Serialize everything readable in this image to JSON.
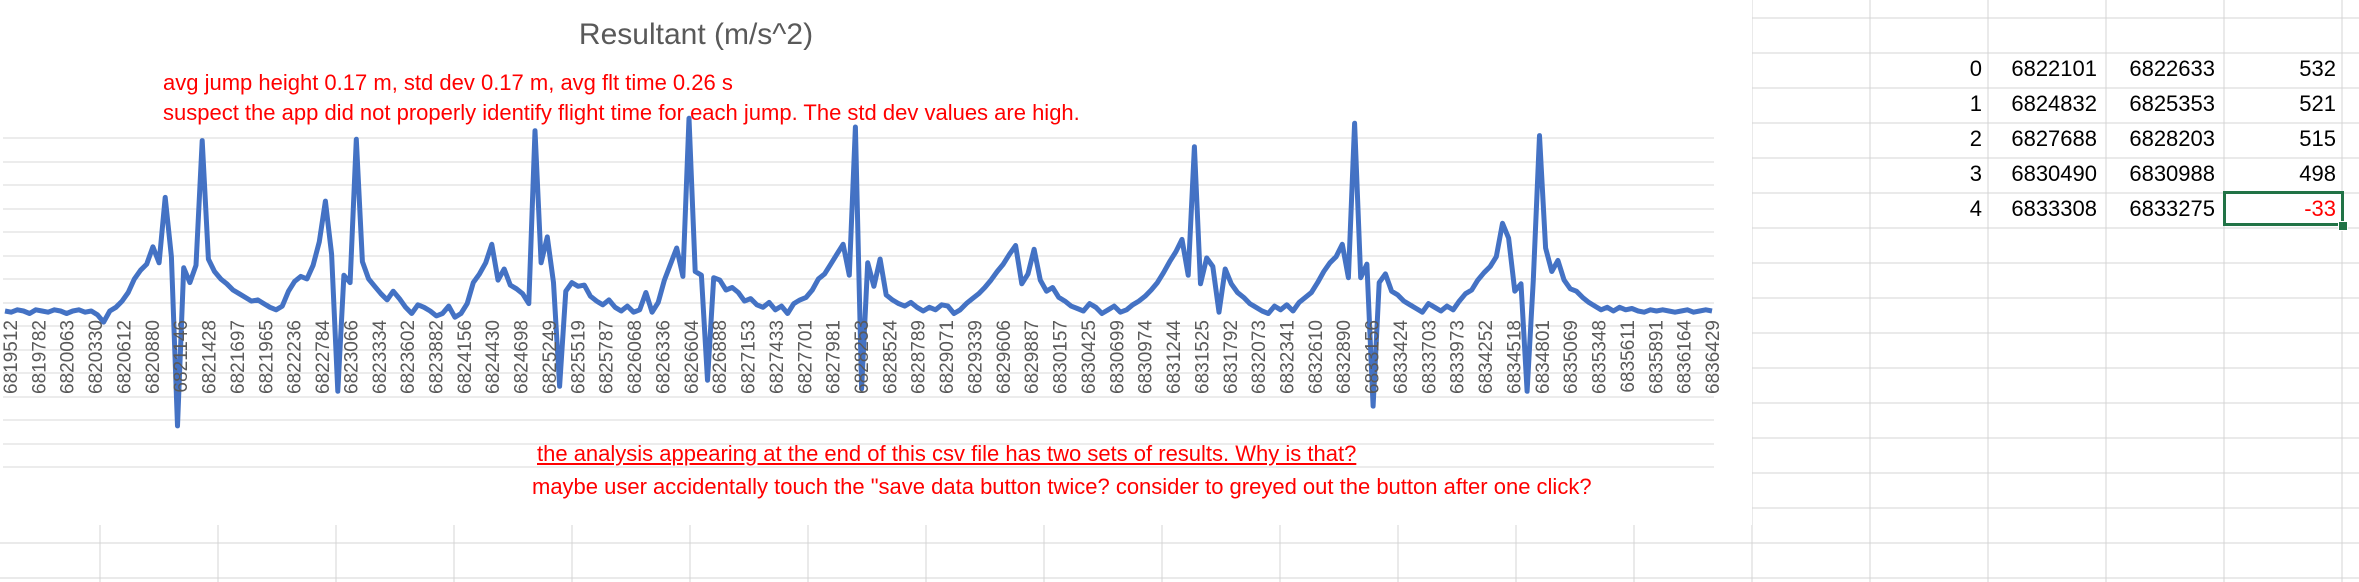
{
  "chart_data": {
    "type": "line",
    "title": "Resultant (m/s^2)",
    "series_color": "#4472C4",
    "x_tick_labels": [
      "6819512",
      "6819782",
      "6820063",
      "6820330",
      "6820612",
      "6820880",
      "6821146",
      "6821428",
      "6821697",
      "6821965",
      "6822236",
      "6822784",
      "6823066",
      "6823334",
      "6823602",
      "6823882",
      "6824156",
      "6824430",
      "6824698",
      "6825249",
      "6825519",
      "6825787",
      "6826068",
      "6826336",
      "6826604",
      "6826888",
      "6827153",
      "6827433",
      "6827701",
      "6827981",
      "6828253",
      "6828524",
      "6828789",
      "6829071",
      "6829339",
      "6829606",
      "6829887",
      "6830157",
      "6830425",
      "6830699",
      "6830974",
      "6831244",
      "6831525",
      "6831792",
      "6832073",
      "6832341",
      "6832610",
      "6832890",
      "6833156",
      "6833424",
      "6833703",
      "6833973",
      "6834252",
      "6834518",
      "6834801",
      "6835069",
      "6835348",
      "6835611",
      "6835891",
      "6836164",
      "6836429"
    ],
    "values": [
      9.8,
      9.7,
      9.9,
      9.8,
      9.6,
      9.9,
      9.8,
      9.7,
      9.9,
      9.8,
      9.6,
      9.8,
      9.9,
      9.7,
      9.8,
      9.5,
      8.9,
      9.8,
      10.1,
      10.6,
      11.3,
      12.4,
      13.1,
      13.6,
      15.0,
      13.7,
      19.0,
      14.2,
      0.5,
      13.3,
      12.1,
      13.5,
      23.6,
      14.0,
      13.0,
      12.4,
      12.0,
      11.5,
      11.2,
      10.9,
      10.6,
      10.7,
      10.4,
      10.1,
      9.9,
      10.2,
      11.4,
      12.2,
      12.6,
      12.4,
      13.5,
      15.4,
      18.7,
      14.4,
      3.3,
      12.7,
      12.1,
      23.7,
      13.8,
      12.4,
      11.8,
      11.2,
      10.7,
      11.4,
      10.8,
      10.1,
      9.6,
      10.3,
      10.1,
      9.8,
      9.4,
      9.6,
      10.2,
      9.3,
      9.6,
      10.4,
      12.1,
      12.8,
      13.7,
      15.2,
      12.3,
      13.2,
      11.9,
      11.6,
      11.2,
      10.4,
      24.4,
      13.7,
      15.8,
      12.1,
      3.7,
      11.4,
      12.1,
      11.8,
      11.9,
      11.0,
      10.6,
      10.3,
      10.7,
      10.1,
      9.8,
      10.2,
      9.7,
      9.9,
      11.3,
      9.7,
      10.5,
      12.3,
      13.6,
      14.9,
      12.6,
      25.4,
      13.0,
      12.7,
      4.2,
      12.5,
      12.3,
      11.5,
      11.7,
      11.3,
      10.6,
      10.8,
      10.3,
      10.1,
      10.5,
      9.9,
      10.2,
      9.6,
      10.4,
      10.7,
      10.9,
      11.5,
      12.4,
      12.8,
      13.6,
      14.4,
      15.2,
      12.7,
      24.7,
      3.5,
      13.7,
      11.8,
      14.0,
      11.1,
      10.7,
      10.4,
      10.2,
      10.5,
      10.1,
      9.8,
      10.1,
      9.9,
      10.3,
      10.2,
      9.6,
      9.9,
      10.4,
      10.8,
      11.2,
      11.7,
      12.3,
      13.0,
      13.6,
      14.4,
      15.1,
      12.0,
      12.8,
      14.8,
      12.3,
      11.4,
      11.7,
      10.9,
      10.6,
      10.2,
      10.0,
      9.8,
      10.4,
      10.1,
      9.6,
      9.9,
      10.2,
      9.7,
      9.9,
      10.3,
      10.6,
      11.0,
      11.5,
      12.1,
      12.9,
      13.8,
      14.6,
      15.6,
      12.7,
      23.1,
      12.0,
      14.1,
      13.4,
      9.7,
      13.2,
      12.0,
      11.3,
      10.9,
      10.4,
      10.1,
      9.8,
      9.6,
      10.2,
      9.9,
      10.3,
      9.8,
      10.5,
      10.9,
      11.3,
      12.1,
      13.0,
      13.7,
      14.2,
      15.2,
      12.5,
      25.0,
      12.5,
      13.6,
      2.1,
      12.1,
      12.8,
      11.4,
      11.1,
      10.6,
      10.3,
      10.0,
      9.7,
      10.4,
      10.1,
      9.8,
      10.2,
      9.9,
      10.6,
      11.2,
      11.5,
      12.3,
      12.9,
      13.4,
      14.2,
      16.9,
      15.7,
      11.4,
      12.0,
      3.3,
      12.3,
      24.0,
      14.9,
      13.0,
      13.9,
      12.3,
      11.6,
      11.4,
      10.9,
      10.5,
      10.2,
      9.9,
      10.1,
      9.8,
      10.1,
      9.9,
      10.0,
      9.8,
      9.7,
      9.9,
      9.8,
      9.9,
      9.8,
      9.7,
      9.8,
      9.9,
      9.7,
      9.8,
      9.9,
      9.8
    ]
  },
  "annotations": {
    "note_1": "avg jump height 0.17 m, std dev 0.17 m, avg flt time 0.26 s",
    "note_2": "suspect the app did not properly identify flight time for each jump. The std dev values are high.",
    "note_3": "the analysis appearing at the end of this csv file has two sets of results. Why is that?",
    "note_4": "maybe user accidentally touch the \"save data button twice? consider to greyed out the button after one click?"
  },
  "sheet_table": {
    "rows": [
      {
        "index": "0",
        "start": "6822101",
        "end": "6822633",
        "diff": "532"
      },
      {
        "index": "1",
        "start": "6824832",
        "end": "6825353",
        "diff": "521"
      },
      {
        "index": "2",
        "start": "6827688",
        "end": "6828203",
        "diff": "515"
      },
      {
        "index": "3",
        "start": "6830490",
        "end": "6830988",
        "diff": "498"
      },
      {
        "index": "4",
        "start": "6833308",
        "end": "6833275",
        "diff": "-33"
      }
    ]
  },
  "colors": {
    "gridline": "#d4d4d4",
    "annotation_text": "#ff0000",
    "selection_border": "#217346"
  }
}
